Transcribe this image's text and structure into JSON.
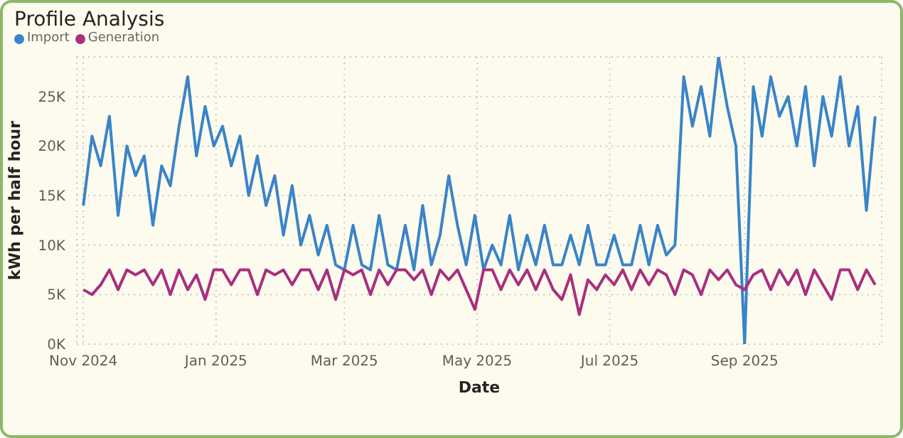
{
  "chart_data": {
    "type": "line",
    "title": "Profile Analysis",
    "xlabel": "Date",
    "ylabel": "kWh per half hour",
    "legend": "top left",
    "grid": true,
    "marker": "none",
    "line_style": "solid",
    "x": [
      "2024-11-01",
      "2024-11-05",
      "2024-11-09",
      "2024-11-13",
      "2024-11-17",
      "2024-11-21",
      "2024-11-25",
      "2024-11-29",
      "2024-12-03",
      "2024-12-07",
      "2024-12-11",
      "2024-12-15",
      "2024-12-19",
      "2024-12-23",
      "2024-12-27",
      "2024-12-31",
      "2025-01-04",
      "2025-01-08",
      "2025-01-12",
      "2025-01-16",
      "2025-01-20",
      "2025-01-24",
      "2025-01-28",
      "2025-02-01",
      "2025-02-05",
      "2025-02-09",
      "2025-02-13",
      "2025-02-17",
      "2025-02-21",
      "2025-02-25",
      "2025-03-01",
      "2025-03-05",
      "2025-03-09",
      "2025-03-13",
      "2025-03-17",
      "2025-03-21",
      "2025-03-25",
      "2025-03-29",
      "2025-04-02",
      "2025-04-06",
      "2025-04-10",
      "2025-04-14",
      "2025-04-18",
      "2025-04-22",
      "2025-04-26",
      "2025-04-30",
      "2025-05-04",
      "2025-05-08",
      "2025-05-12",
      "2025-05-16",
      "2025-05-20",
      "2025-05-24",
      "2025-05-28",
      "2025-06-01",
      "2025-06-05",
      "2025-06-09",
      "2025-06-13",
      "2025-06-17",
      "2025-06-21",
      "2025-06-25",
      "2025-06-29",
      "2025-07-03",
      "2025-07-07",
      "2025-07-11",
      "2025-07-15",
      "2025-07-19",
      "2025-07-23",
      "2025-07-27",
      "2025-07-31",
      "2025-08-04",
      "2025-08-08",
      "2025-08-12",
      "2025-08-16",
      "2025-08-20",
      "2025-08-24",
      "2025-08-28",
      "2025-09-01",
      "2025-09-05",
      "2025-09-09",
      "2025-09-13",
      "2025-09-17",
      "2025-09-21",
      "2025-09-25",
      "2025-09-29",
      "2025-10-03",
      "2025-10-07",
      "2025-10-11",
      "2025-10-15",
      "2025-10-19",
      "2025-10-23",
      "2025-10-27",
      "2025-10-31"
    ],
    "xlim": [
      "2024-10-29",
      "2025-11-03"
    ],
    "xticks": [
      {
        "value": "2024-11-01",
        "label": "Nov 2024"
      },
      {
        "value": "2025-01-01",
        "label": "Jan 2025"
      },
      {
        "value": "2025-03-01",
        "label": "Mar 2025"
      },
      {
        "value": "2025-05-01",
        "label": "May 2025"
      },
      {
        "value": "2025-07-01",
        "label": "Jul 2025"
      },
      {
        "value": "2025-09-01",
        "label": "Sep 2025"
      }
    ],
    "ylim": [
      0,
      29000
    ],
    "yticks": [
      {
        "value": 0,
        "label": "0K"
      },
      {
        "value": 5000,
        "label": "5K"
      },
      {
        "value": 10000,
        "label": "10K"
      },
      {
        "value": 15000,
        "label": "15K"
      },
      {
        "value": 20000,
        "label": "20K"
      },
      {
        "value": 25000,
        "label": "25K"
      }
    ],
    "series": [
      {
        "name": "Import",
        "color": "#3a84c8",
        "values": [
          14000,
          21000,
          18000,
          23000,
          13000,
          20000,
          17000,
          19000,
          12000,
          18000,
          16000,
          22000,
          27000,
          19000,
          24000,
          20000,
          22000,
          18000,
          21000,
          15000,
          19000,
          14000,
          17000,
          11000,
          16000,
          10000,
          13000,
          9000,
          12000,
          8000,
          7500,
          12000,
          8000,
          7500,
          13000,
          8000,
          7500,
          12000,
          7500,
          14000,
          8000,
          11000,
          17000,
          12000,
          8000,
          13000,
          7500,
          10000,
          8000,
          13000,
          7500,
          11000,
          8000,
          12000,
          8000,
          8000,
          11000,
          8000,
          12000,
          8000,
          8000,
          11000,
          8000,
          8000,
          12000,
          8000,
          12000,
          9000,
          10000,
          27000,
          22000,
          26000,
          21000,
          29000,
          24000,
          20000,
          0,
          26000,
          21000,
          27000,
          23000,
          25000,
          20000,
          26000,
          18000,
          25000,
          21000,
          27000,
          20000,
          24000,
          13500,
          23000
        ]
      },
      {
        "name": "Generation",
        "color": "#a8307f",
        "values": [
          5500,
          5000,
          6000,
          7500,
          5500,
          7500,
          7000,
          7500,
          6000,
          7500,
          5000,
          7500,
          5500,
          7000,
          4500,
          7500,
          7500,
          6000,
          7500,
          7500,
          5000,
          7500,
          7000,
          7500,
          6000,
          7500,
          7500,
          5500,
          7500,
          4500,
          7500,
          7000,
          7500,
          5000,
          7500,
          6000,
          7500,
          7500,
          6500,
          7500,
          5000,
          7500,
          6500,
          7500,
          5500,
          3500,
          7500,
          7500,
          5500,
          7500,
          6000,
          7500,
          5500,
          7500,
          5500,
          4500,
          7000,
          3000,
          6500,
          5500,
          7000,
          6000,
          7500,
          5500,
          7500,
          6000,
          7500,
          7000,
          5000,
          7500,
          7000,
          5000,
          7500,
          6500,
          7500,
          6000,
          5500,
          7000,
          7500,
          5500,
          7500,
          6000,
          7500,
          5000,
          7500,
          6000,
          4500,
          7500,
          7500,
          5500,
          7500,
          6000
        ]
      }
    ]
  }
}
